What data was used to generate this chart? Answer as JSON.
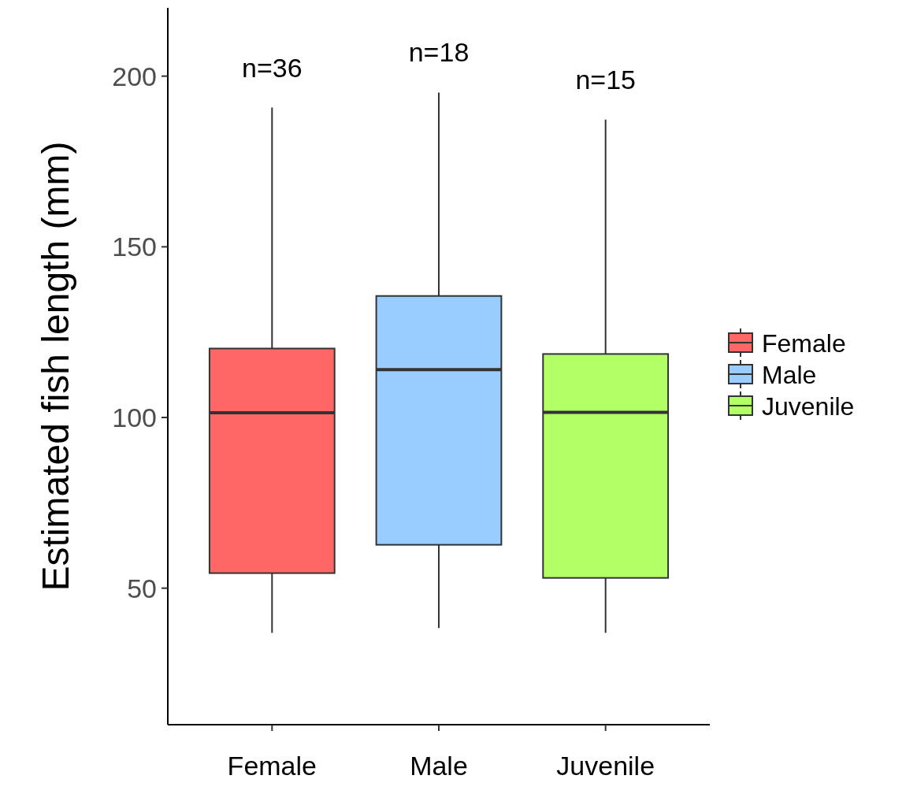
{
  "chart_data": {
    "type": "box",
    "ylabel": "Estimated fish length (mm)",
    "categories": [
      "Female",
      "Male",
      "Juvenile"
    ],
    "series": [
      {
        "name": "Female",
        "color": "#ff6666",
        "boxes": [
          {
            "low": 36.9,
            "q1": 54.4,
            "median": 101.4,
            "q3": 120.2,
            "high": 190.8
          },
          null,
          null
        ]
      },
      {
        "name": "Male",
        "color": "#99ccff",
        "boxes": [
          null,
          {
            "low": 38.3,
            "q1": 62.7,
            "median": 114.0,
            "q3": 135.6,
            "high": 195.2
          },
          null
        ]
      },
      {
        "name": "Juvenile",
        "color": "#b3ff66",
        "boxes": [
          null,
          null,
          {
            "low": 36.9,
            "q1": 53.0,
            "median": 101.5,
            "q3": 118.6,
            "high": 187.3
          }
        ]
      }
    ],
    "ylim": [
      10,
      220
    ],
    "yticks": [
      50,
      100,
      150,
      200
    ],
    "grid": false,
    "legend": "right",
    "annotations": [
      "n=36",
      "n=18",
      "n=15"
    ]
  }
}
